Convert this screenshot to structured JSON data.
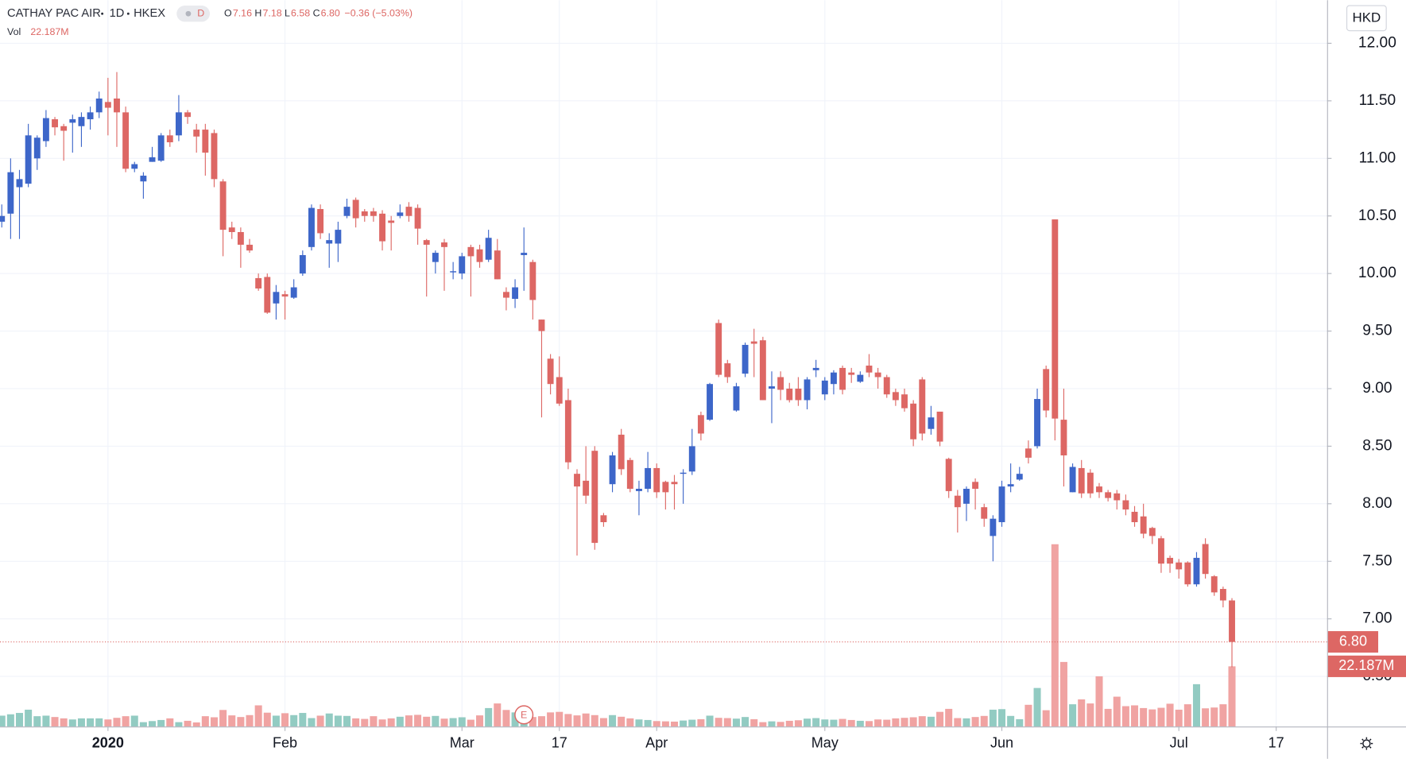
{
  "chart_data": {
    "type": "candlestick",
    "header": {
      "symbol": "CATHAY PAC AIR",
      "interval": "1D",
      "exchange": "HKEX",
      "badge": "D",
      "ohlc": [
        {
          "key": "O",
          "value": "7.16"
        },
        {
          "key": "H",
          "value": "7.18"
        },
        {
          "key": "L",
          "value": "6.58"
        },
        {
          "key": "C",
          "value": "6.80"
        }
      ],
      "change": "−0.36 (−5.03%)",
      "volume_key": "Vol",
      "volume_value": "22.187M",
      "currency": "HKD"
    },
    "last_price_label": "6.80",
    "last_volume_label": "22.187M",
    "earnings": {
      "label": "E",
      "index": 59
    },
    "up_color": "#3d66c9",
    "down_color": "#dd6764",
    "volume_up_color": "#92cbc2",
    "volume_down_color": "#f0a3a2",
    "grid": true,
    "xlim": [
      -0.2,
      149.75
    ],
    "xticks": [
      {
        "value": 12,
        "label": "2020"
      },
      {
        "value": 32,
        "label": "Feb"
      },
      {
        "value": 52,
        "label": "Mar"
      },
      {
        "value": 63,
        "label": "17"
      },
      {
        "value": 74,
        "label": "Apr"
      },
      {
        "value": 93,
        "label": "May"
      },
      {
        "value": 113,
        "label": "Jun"
      },
      {
        "value": 133,
        "label": "Jul"
      },
      {
        "value": 144,
        "label": "17"
      }
    ],
    "ylim": [
      6.065,
      12.374
    ],
    "yticks": [
      {
        "value": 6.5,
        "label": "6.50"
      },
      {
        "value": 7,
        "label": "7.00"
      },
      {
        "value": 7.5,
        "label": "7.50"
      },
      {
        "value": 8,
        "label": "8.00"
      },
      {
        "value": 8.5,
        "label": "8.50"
      },
      {
        "value": 9,
        "label": "9.00"
      },
      {
        "value": 9.5,
        "label": "9.50"
      },
      {
        "value": 10,
        "label": "10.00"
      },
      {
        "value": 10.5,
        "label": "10.50"
      },
      {
        "value": 11,
        "label": "11.00"
      },
      {
        "value": 11.5,
        "label": "11.50"
      },
      {
        "value": 12,
        "label": "12.00"
      }
    ],
    "volume_lim": [
      0,
      80
    ],
    "open": [
      10.45,
      10.52,
      10.75,
      10.78,
      11.0,
      11.15,
      11.34,
      11.28,
      11.31,
      11.28,
      11.34,
      11.4,
      11.49,
      11.52,
      11.4,
      10.91,
      10.8,
      10.97,
      10.98,
      11.2,
      11.2,
      11.4,
      11.25,
      11.25,
      11.22,
      10.8,
      10.4,
      10.36,
      10.25,
      9.96,
      9.97,
      9.74,
      9.82,
      9.79,
      10.0,
      10.23,
      10.56,
      10.26,
      10.26,
      10.5,
      10.64,
      10.54,
      10.54,
      10.52,
      10.46,
      10.5,
      10.58,
      10.57,
      10.29,
      10.1,
      10.27,
      10.01,
      10.0,
      10.23,
      10.21,
      10.12,
      10.2,
      9.84,
      9.78,
      10.16,
      10.1,
      9.6,
      9.26,
      9.1,
      8.9,
      8.26,
      8.2,
      8.46,
      7.9,
      8.17,
      8.6,
      8.38,
      8.11,
      8.13,
      8.31,
      8.19,
      8.19,
      8.26,
      8.28,
      8.77,
      8.73,
      9.57,
      9.22,
      8.81,
      9.13,
      9.41,
      9.42,
      9.0,
      9.1,
      9.0,
      9.0,
      8.9,
      9.16,
      8.95,
      9.04,
      9.18,
      9.14,
      9.06,
      9.2,
      9.14,
      9.1,
      8.97,
      8.95,
      8.87,
      9.08,
      8.65,
      8.8,
      8.39,
      8.07,
      8.0,
      8.19,
      7.97,
      7.72,
      7.84,
      8.15,
      8.21,
      8.48,
      8.5,
      9.17,
      10.47,
      8.73,
      8.1,
      8.31,
      8.27,
      8.15,
      8.1,
      8.09,
      8.03,
      7.93,
      7.89,
      7.79,
      7.7,
      7.53,
      7.49,
      7.49,
      7.3,
      7.65,
      7.37,
      7.26,
      7.16
    ],
    "high": [
      10.6,
      11.0,
      10.9,
      11.3,
      11.2,
      11.42,
      11.36,
      11.3,
      11.38,
      11.4,
      11.45,
      11.58,
      11.7,
      11.75,
      11.45,
      10.97,
      10.88,
      11.1,
      11.22,
      11.25,
      11.55,
      11.42,
      11.3,
      11.3,
      11.25,
      10.82,
      10.45,
      10.4,
      10.3,
      10.0,
      10.0,
      9.9,
      9.85,
      9.95,
      10.2,
      10.6,
      10.6,
      10.35,
      10.45,
      10.65,
      10.66,
      10.56,
      10.57,
      10.55,
      10.5,
      10.6,
      10.62,
      10.6,
      10.3,
      10.2,
      10.3,
      10.1,
      10.18,
      10.25,
      10.25,
      10.38,
      10.3,
      9.88,
      9.95,
      10.4,
      10.12,
      9.6,
      9.3,
      9.28,
      9.0,
      8.3,
      8.5,
      8.5,
      7.92,
      8.45,
      8.65,
      8.4,
      8.2,
      8.45,
      8.35,
      8.2,
      8.25,
      8.3,
      8.65,
      8.8,
      9.05,
      9.6,
      9.25,
      9.05,
      9.4,
      9.52,
      9.45,
      9.15,
      9.15,
      9.05,
      9.1,
      9.1,
      9.25,
      9.1,
      9.16,
      9.2,
      9.18,
      9.15,
      9.3,
      9.18,
      9.12,
      9.0,
      9.0,
      8.9,
      9.1,
      8.85,
      8.8,
      8.4,
      8.12,
      8.15,
      8.22,
      8.0,
      7.9,
      8.2,
      8.35,
      8.32,
      8.55,
      9.0,
      9.2,
      10.47,
      9.0,
      8.35,
      8.38,
      8.3,
      8.18,
      8.12,
      8.12,
      8.08,
      7.98,
      8.0,
      7.8,
      7.72,
      7.55,
      7.52,
      7.5,
      7.58,
      7.7,
      7.38,
      7.28,
      7.18
    ],
    "low": [
      10.4,
      10.3,
      10.3,
      10.75,
      10.9,
      11.1,
      11.2,
      10.98,
      11.05,
      11.1,
      11.25,
      11.35,
      11.2,
      11.1,
      10.88,
      10.88,
      10.65,
      10.97,
      10.97,
      11.1,
      11.15,
      11.3,
      11.05,
      10.85,
      10.75,
      10.15,
      10.3,
      10.05,
      10.18,
      9.85,
      9.65,
      9.6,
      9.6,
      9.78,
      9.98,
      10.2,
      10.3,
      10.05,
      10.1,
      10.48,
      10.4,
      10.45,
      10.45,
      10.2,
      10.2,
      10.48,
      10.45,
      10.25,
      9.8,
      10.0,
      9.85,
      9.95,
      9.95,
      9.8,
      10.05,
      10.1,
      9.95,
      9.68,
      9.7,
      9.85,
      9.6,
      8.75,
      8.95,
      8.85,
      8.3,
      7.55,
      8.0,
      7.6,
      7.8,
      8.1,
      8.25,
      8.1,
      7.9,
      8.1,
      8.05,
      7.95,
      7.95,
      8.0,
      8.25,
      8.55,
      8.72,
      9.1,
      9.05,
      8.8,
      9.1,
      9.1,
      8.9,
      8.7,
      8.9,
      8.88,
      8.85,
      8.82,
      9.1,
      8.9,
      8.95,
      8.95,
      9.05,
      9.05,
      9.1,
      9.0,
      8.92,
      8.85,
      8.8,
      8.5,
      8.55,
      8.6,
      8.5,
      8.05,
      7.75,
      7.85,
      7.95,
      7.8,
      7.5,
      7.8,
      8.1,
      8.2,
      8.35,
      8.48,
      8.75,
      8.55,
      8.15,
      8.1,
      8.05,
      8.05,
      8.05,
      8.02,
      7.95,
      7.9,
      7.8,
      7.7,
      7.65,
      7.4,
      7.4,
      7.35,
      7.28,
      7.28,
      7.35,
      7.2,
      7.1,
      6.58
    ],
    "close": [
      10.5,
      10.88,
      10.82,
      11.2,
      11.18,
      11.35,
      11.27,
      11.24,
      11.34,
      11.36,
      11.4,
      11.52,
      11.44,
      11.4,
      10.91,
      10.95,
      10.85,
      11.01,
      11.2,
      11.14,
      11.4,
      11.36,
      11.19,
      11.05,
      10.82,
      10.38,
      10.36,
      10.25,
      10.2,
      9.87,
      9.66,
      9.84,
      9.8,
      9.88,
      10.16,
      10.57,
      10.35,
      10.29,
      10.38,
      10.58,
      10.48,
      10.5,
      10.5,
      10.28,
      10.44,
      10.53,
      10.5,
      10.39,
      10.25,
      10.18,
      10.23,
      10.02,
      10.15,
      10.15,
      10.1,
      10.31,
      9.95,
      9.79,
      9.88,
      10.18,
      9.77,
      9.5,
      9.04,
      8.87,
      8.36,
      8.15,
      8.07,
      7.66,
      7.84,
      8.42,
      8.3,
      8.13,
      8.13,
      8.31,
      8.1,
      8.1,
      8.17,
      8.27,
      8.5,
      8.61,
      9.04,
      9.12,
      9.1,
      9.02,
      9.38,
      9.39,
      8.9,
      9.02,
      8.99,
      8.9,
      8.9,
      9.08,
      9.18,
      9.07,
      9.14,
      8.99,
      9.12,
      9.12,
      9.14,
      9.1,
      8.95,
      8.9,
      8.83,
      8.56,
      8.61,
      8.75,
      8.54,
      8.11,
      7.97,
      8.13,
      8.13,
      7.87,
      7.87,
      8.15,
      8.17,
      8.26,
      8.4,
      8.91,
      8.81,
      8.74,
      8.42,
      8.32,
      8.09,
      8.09,
      8.1,
      8.05,
      8.03,
      7.95,
      7.84,
      7.74,
      7.72,
      7.48,
      7.48,
      7.43,
      7.3,
      7.53,
      7.39,
      7.23,
      7.16,
      6.8
    ],
    "volume": [
      4,
      4.5,
      5,
      6.2,
      3.8,
      4,
      3.5,
      3,
      2.6,
      3,
      3,
      3,
      2.6,
      3.2,
      3.8,
      4,
      1.6,
      2,
      2.4,
      3,
      1.6,
      2.1,
      1.5,
      3.8,
      3.4,
      6.1,
      4.1,
      3.5,
      4.2,
      7.8,
      5.1,
      4,
      4.9,
      4.2,
      5,
      3.1,
      4,
      4.8,
      4,
      3.9,
      3,
      2.8,
      3.8,
      2.6,
      3,
      3.6,
      4.1,
      4.3,
      3.6,
      3.9,
      2.9,
      3.1,
      3.4,
      2.5,
      4.1,
      6.8,
      8.5,
      6.1,
      5.2,
      4.3,
      3.5,
      3.8,
      5.2,
      5.4,
      4.6,
      4.1,
      4.8,
      4.2,
      3.1,
      4.2,
      3.6,
      3,
      2.6,
      2.4,
      2,
      1.9,
      1.8,
      2.2,
      2.5,
      2.7,
      4,
      3.2,
      3.1,
      2.9,
      3.5,
      2.7,
      1.6,
      1.9,
      1.7,
      2.1,
      2.3,
      2.9,
      3.1,
      2.6,
      2.5,
      2.8,
      2.4,
      2.1,
      2,
      2.6,
      2.5,
      3,
      3.2,
      3.4,
      3.8,
      3.6,
      5.4,
      6.5,
      3.1,
      3,
      3.5,
      3.9,
      6.2,
      6.4,
      3.9,
      2.7,
      8,
      14.2,
      6,
      67.2,
      23.8,
      8.2,
      10,
      8.5,
      18.5,
      6.5,
      11,
      7.5,
      7.8,
      6.8,
      6.3,
      6.9,
      8.4,
      6.2,
      8.2,
      15.6,
      6.7,
      7,
      8.2,
      22.187
    ]
  }
}
